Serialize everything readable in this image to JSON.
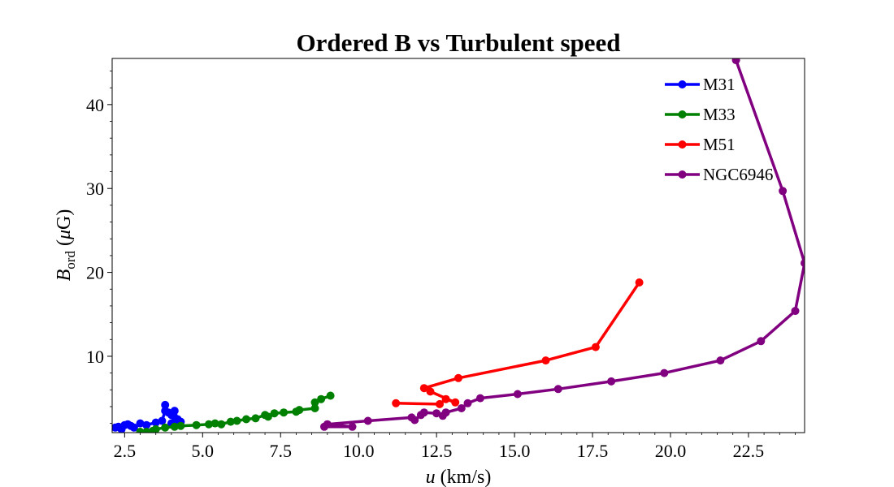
{
  "chart_data": {
    "type": "line",
    "title": "Ordered B vs Turbulent speed",
    "xlabel": "u (km/s)",
    "ylabel": "B_ord (μG)",
    "xlabel_parts": {
      "var": "u",
      "unit": " (km/s)"
    },
    "ylabel_parts": {
      "var": "B",
      "sub": "ord",
      "unit_open": " (",
      "mu": "μ",
      "unit_close": "G)"
    },
    "xlim": [
      2.1,
      24.3
    ],
    "ylim": [
      0.9,
      45.5
    ],
    "xticks": [
      2.5,
      5.0,
      7.5,
      10.0,
      12.5,
      15.0,
      17.5,
      20.0,
      22.5
    ],
    "xtick_labels": [
      "2.5",
      "5.0",
      "7.5",
      "10.0",
      "12.5",
      "15.0",
      "17.5",
      "20.0",
      "22.5"
    ],
    "yticks": [
      10,
      20,
      30,
      40
    ],
    "ytick_labels": [
      "10",
      "20",
      "30",
      "40"
    ],
    "grid": false,
    "legend_position": "top-right",
    "series": [
      {
        "name": "M31",
        "color": "#0000ff",
        "points": [
          [
            2.2,
            1.5
          ],
          [
            2.3,
            1.6
          ],
          [
            2.4,
            1.3
          ],
          [
            2.5,
            1.8
          ],
          [
            2.6,
            1.9
          ],
          [
            2.7,
            1.7
          ],
          [
            2.8,
            1.5
          ],
          [
            3.0,
            2.0
          ],
          [
            3.2,
            1.8
          ],
          [
            3.5,
            2.1
          ],
          [
            3.7,
            2.3
          ],
          [
            3.8,
            3.5
          ],
          [
            3.8,
            4.2
          ],
          [
            3.9,
            3.3
          ],
          [
            4.0,
            3.0
          ],
          [
            4.1,
            3.5
          ],
          [
            4.2,
            2.5
          ],
          [
            4.1,
            2.2
          ],
          [
            4.3,
            2.2
          ],
          [
            4.0,
            2.0
          ]
        ]
      },
      {
        "name": "M33",
        "color": "#008000",
        "points": [
          [
            3.0,
            1.0
          ],
          [
            3.2,
            1.0
          ],
          [
            3.4,
            1.1
          ],
          [
            3.5,
            1.3
          ],
          [
            3.8,
            1.5
          ],
          [
            4.1,
            1.6
          ],
          [
            4.3,
            1.7
          ],
          [
            4.8,
            1.8
          ],
          [
            5.2,
            1.9
          ],
          [
            5.4,
            2.0
          ],
          [
            5.6,
            1.9
          ],
          [
            5.9,
            2.2
          ],
          [
            6.1,
            2.3
          ],
          [
            6.4,
            2.5
          ],
          [
            6.7,
            2.6
          ],
          [
            7.0,
            3.0
          ],
          [
            7.1,
            2.8
          ],
          [
            7.3,
            3.2
          ],
          [
            7.6,
            3.3
          ],
          [
            8.0,
            3.4
          ],
          [
            8.1,
            3.6
          ],
          [
            8.6,
            3.8
          ],
          [
            8.6,
            4.5
          ],
          [
            8.8,
            4.9
          ],
          [
            9.1,
            5.3
          ]
        ]
      },
      {
        "name": "M51",
        "color": "#ff0000",
        "points": [
          [
            11.2,
            4.4
          ],
          [
            12.6,
            4.3
          ],
          [
            12.8,
            4.9
          ],
          [
            13.1,
            4.5
          ],
          [
            12.3,
            5.8
          ],
          [
            12.1,
            6.2
          ],
          [
            13.2,
            7.4
          ],
          [
            16.0,
            9.5
          ],
          [
            17.6,
            11.1
          ],
          [
            19.0,
            18.8
          ]
        ]
      },
      {
        "name": "NGC6946",
        "color": "#800080",
        "points": [
          [
            8.9,
            1.6
          ],
          [
            9.8,
            1.6
          ],
          [
            9.0,
            1.9
          ],
          [
            10.3,
            2.3
          ],
          [
            11.7,
            2.7
          ],
          [
            11.8,
            2.4
          ],
          [
            12.0,
            3.0
          ],
          [
            12.1,
            3.3
          ],
          [
            12.5,
            3.2
          ],
          [
            12.7,
            2.9
          ],
          [
            12.8,
            3.3
          ],
          [
            13.3,
            3.8
          ],
          [
            13.5,
            4.4
          ],
          [
            13.9,
            5.0
          ],
          [
            15.1,
            5.5
          ],
          [
            16.4,
            6.1
          ],
          [
            18.1,
            7.0
          ],
          [
            19.8,
            8.0
          ],
          [
            21.6,
            9.5
          ],
          [
            22.9,
            11.8
          ],
          [
            24.0,
            15.4
          ],
          [
            24.3,
            21.1
          ],
          [
            23.6,
            29.7
          ],
          [
            22.1,
            45.3
          ]
        ]
      }
    ]
  }
}
